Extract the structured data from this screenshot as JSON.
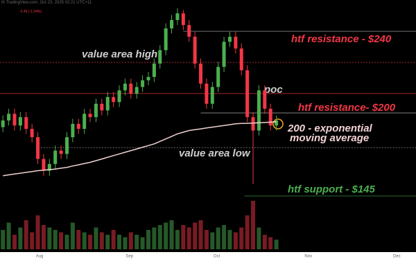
{
  "chart_data": {
    "type": "candlestick",
    "header": "th TradingView.com, Oct 23, 2025 02:21 UTC+11",
    "change": "-2.49 (-1.34%)",
    "x": [
      1,
      3,
      5,
      7,
      9,
      11,
      13,
      15,
      17,
      19,
      21,
      23,
      25,
      27,
      29,
      31,
      33,
      35,
      37,
      39,
      41,
      43,
      45,
      47,
      49,
      51,
      53,
      55,
      57,
      59,
      61,
      63,
      65,
      67,
      69,
      71,
      73,
      75,
      77,
      79,
      81,
      83,
      85,
      87,
      89,
      91,
      93,
      95
    ],
    "open": [
      184,
      188,
      192,
      185,
      190,
      183,
      178,
      165,
      158,
      162,
      170,
      168,
      178,
      186,
      183,
      192,
      190,
      198,
      194,
      202,
      199,
      206,
      210,
      204,
      208,
      212,
      214,
      222,
      230,
      243,
      248,
      252,
      245,
      238,
      222,
      210,
      198,
      208,
      220,
      235,
      238,
      231,
      218,
      190,
      182,
      206,
      195,
      185
    ],
    "high": [
      191,
      195,
      195,
      193,
      193,
      186,
      181,
      168,
      165,
      173,
      173,
      181,
      189,
      189,
      195,
      195,
      201,
      201,
      205,
      205,
      209,
      213,
      213,
      211,
      215,
      217,
      225,
      233,
      246,
      251,
      255,
      254,
      248,
      241,
      225,
      213,
      211,
      223,
      238,
      241,
      241,
      234,
      221,
      193,
      209,
      209,
      198,
      191
    ],
    "low": [
      181,
      185,
      182,
      182,
      180,
      175,
      162,
      155,
      155,
      159,
      165,
      165,
      175,
      180,
      180,
      187,
      187,
      191,
      191,
      196,
      196,
      203,
      201,
      201,
      205,
      209,
      211,
      219,
      227,
      240,
      245,
      242,
      235,
      219,
      207,
      195,
      195,
      205,
      217,
      232,
      228,
      215,
      187,
      150,
      179,
      192,
      182,
      182
    ],
    "close": [
      188,
      192,
      185,
      190,
      183,
      178,
      165,
      158,
      162,
      170,
      168,
      178,
      186,
      183,
      192,
      190,
      198,
      194,
      202,
      199,
      206,
      210,
      204,
      208,
      212,
      214,
      222,
      230,
      243,
      248,
      252,
      245,
      238,
      222,
      210,
      198,
      208,
      220,
      235,
      238,
      231,
      218,
      190,
      182,
      206,
      195,
      185,
      188
    ],
    "ema": [
      155,
      155.5,
      156,
      156.5,
      157,
      157.5,
      158,
      158.3,
      158.6,
      159,
      159.5,
      160,
      160.8,
      161.5,
      162.3,
      163,
      164,
      165,
      166,
      167,
      168,
      169,
      170,
      171,
      172,
      173,
      174,
      175.5,
      177,
      178.5,
      180,
      181,
      182,
      182.5,
      183,
      183.5,
      184,
      184.5,
      185,
      185.5,
      186,
      186.2,
      186.3,
      186.4,
      186.6,
      186.8,
      187,
      187.2
    ],
    "volume": [
      40,
      55,
      30,
      45,
      60,
      35,
      70,
      50,
      45,
      40,
      35,
      30,
      55,
      40,
      35,
      30,
      45,
      35,
      30,
      40,
      30,
      25,
      35,
      30,
      25,
      40,
      45,
      50,
      55,
      60,
      40,
      50,
      45,
      55,
      60,
      40,
      35,
      45,
      50,
      40,
      35,
      45,
      70,
      100,
      45,
      30,
      25,
      20
    ],
    "vlim": [
      0,
      100
    ],
    "ylim": [
      140,
      255
    ],
    "xlim": [
      0,
      143
    ],
    "xticks": [
      {
        "value": 13.6,
        "label": "Aug"
      },
      {
        "value": 44.5,
        "label": "Sep"
      },
      {
        "value": 74.5,
        "label": "Oct"
      },
      {
        "value": 106,
        "label": "Nov"
      },
      {
        "value": 136.4,
        "label": "Dec"
      }
    ],
    "up_color": "#4caf50",
    "down_color": "#f23645",
    "ema_color": "#f3d3d3",
    "levels": [
      241.3,
      222.7,
      204.1,
      192.5,
      171.8,
      142.9
    ],
    "level_starts": [
      63,
      0,
      0,
      69,
      14,
      84
    ],
    "annotations": {
      "vah": "value area high",
      "poc": "poc",
      "val": "value area low",
      "res240": "htf resistance - $240",
      "res200": "htf resistance- $200",
      "ema1": "200 - exponential",
      "ema2": "moving average",
      "support": "htf support - $145"
    }
  }
}
